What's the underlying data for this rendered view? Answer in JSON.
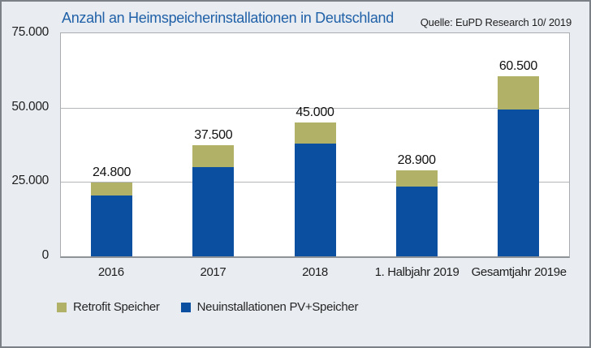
{
  "title": "Anzahl an Heimspeicherinstallationen in Deutschland",
  "source": "Quelle: EuPD Research 10/ 2019",
  "colors": {
    "background": "#e9edf2",
    "plot_background": "#ffffff",
    "outer_border": "#7b8086",
    "gridline": "#b4b7ba",
    "title_blue": "#2161a8",
    "bar_blue": "#0b4fa0",
    "bar_olive": "#b2b168",
    "text": "#1e1e1e"
  },
  "legend": [
    {
      "label": "Retrofit Speicher",
      "color": "#b2b168"
    },
    {
      "label": "Neuinstallationen PV+Speicher",
      "color": "#0b4fa0"
    }
  ],
  "chart_data": {
    "type": "bar",
    "stacked": true,
    "title": "Anzahl an Heimspeicherinstallationen in Deutschland",
    "source": "Quelle: EuPD Research 10/ 2019",
    "categories": [
      "2016",
      "2017",
      "2018",
      "1. Halbjahr 2019",
      "Gesamtjahr 2019e"
    ],
    "series": [
      {
        "name": "Neuinstallationen PV+Speicher",
        "color": "#0b4fa0",
        "values": [
          20500,
          30000,
          38000,
          23500,
          49500
        ],
        "note": "segment values estimated from pixel heights"
      },
      {
        "name": "Retrofit Speicher",
        "color": "#b2b168",
        "values": [
          4300,
          7500,
          7000,
          5400,
          11000
        ],
        "note": "segment values estimated from pixel heights"
      }
    ],
    "totals": [
      24800,
      37500,
      45000,
      28900,
      60500
    ],
    "total_labels": [
      "24.800",
      "37.500",
      "45.000",
      "28.900",
      "60.500"
    ],
    "ylim": [
      0,
      75000
    ],
    "yticks": [
      {
        "label": "75.000",
        "value": 75000
      },
      {
        "label": "50.000",
        "value": 50000
      },
      {
        "label": "25.000",
        "value": 25000
      },
      {
        "label": "0",
        "value": 0
      }
    ],
    "grid": "horizontal",
    "legend_position": "bottom-left"
  }
}
